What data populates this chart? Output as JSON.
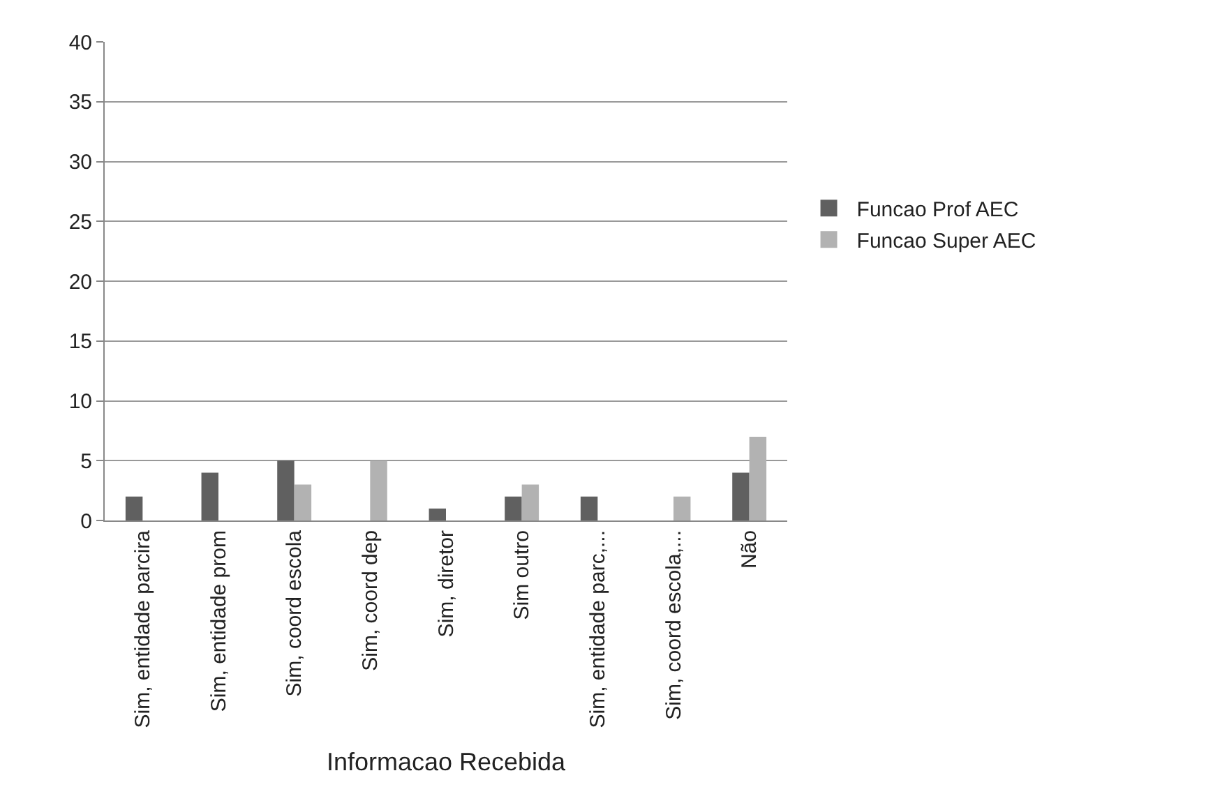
{
  "chart_data": {
    "type": "bar",
    "xlabel": "Informacao Recebida",
    "categories": [
      "Sim, entidade parcira",
      "Sim, entidade prom",
      "Sim, coord escola",
      "Sim, coord dep",
      "Sim, diretor",
      "Sim outro",
      "Sim, entidade parc,...",
      "Sim, coord escola,...",
      "Não"
    ],
    "series": [
      {
        "name": "Funcao Prof AEC",
        "color": "#606060",
        "values": [
          2,
          4,
          5,
          0,
          1,
          2,
          2,
          0,
          4
        ]
      },
      {
        "name": "Funcao Super AEC",
        "color": "#b2b2b2",
        "values": [
          0,
          0,
          3,
          5,
          0,
          3,
          0,
          2,
          7
        ]
      }
    ],
    "ylim": [
      0,
      40
    ],
    "yticks": [
      0,
      5,
      10,
      15,
      20,
      25,
      30,
      35,
      40
    ],
    "grid": "y",
    "legend": "right"
  }
}
